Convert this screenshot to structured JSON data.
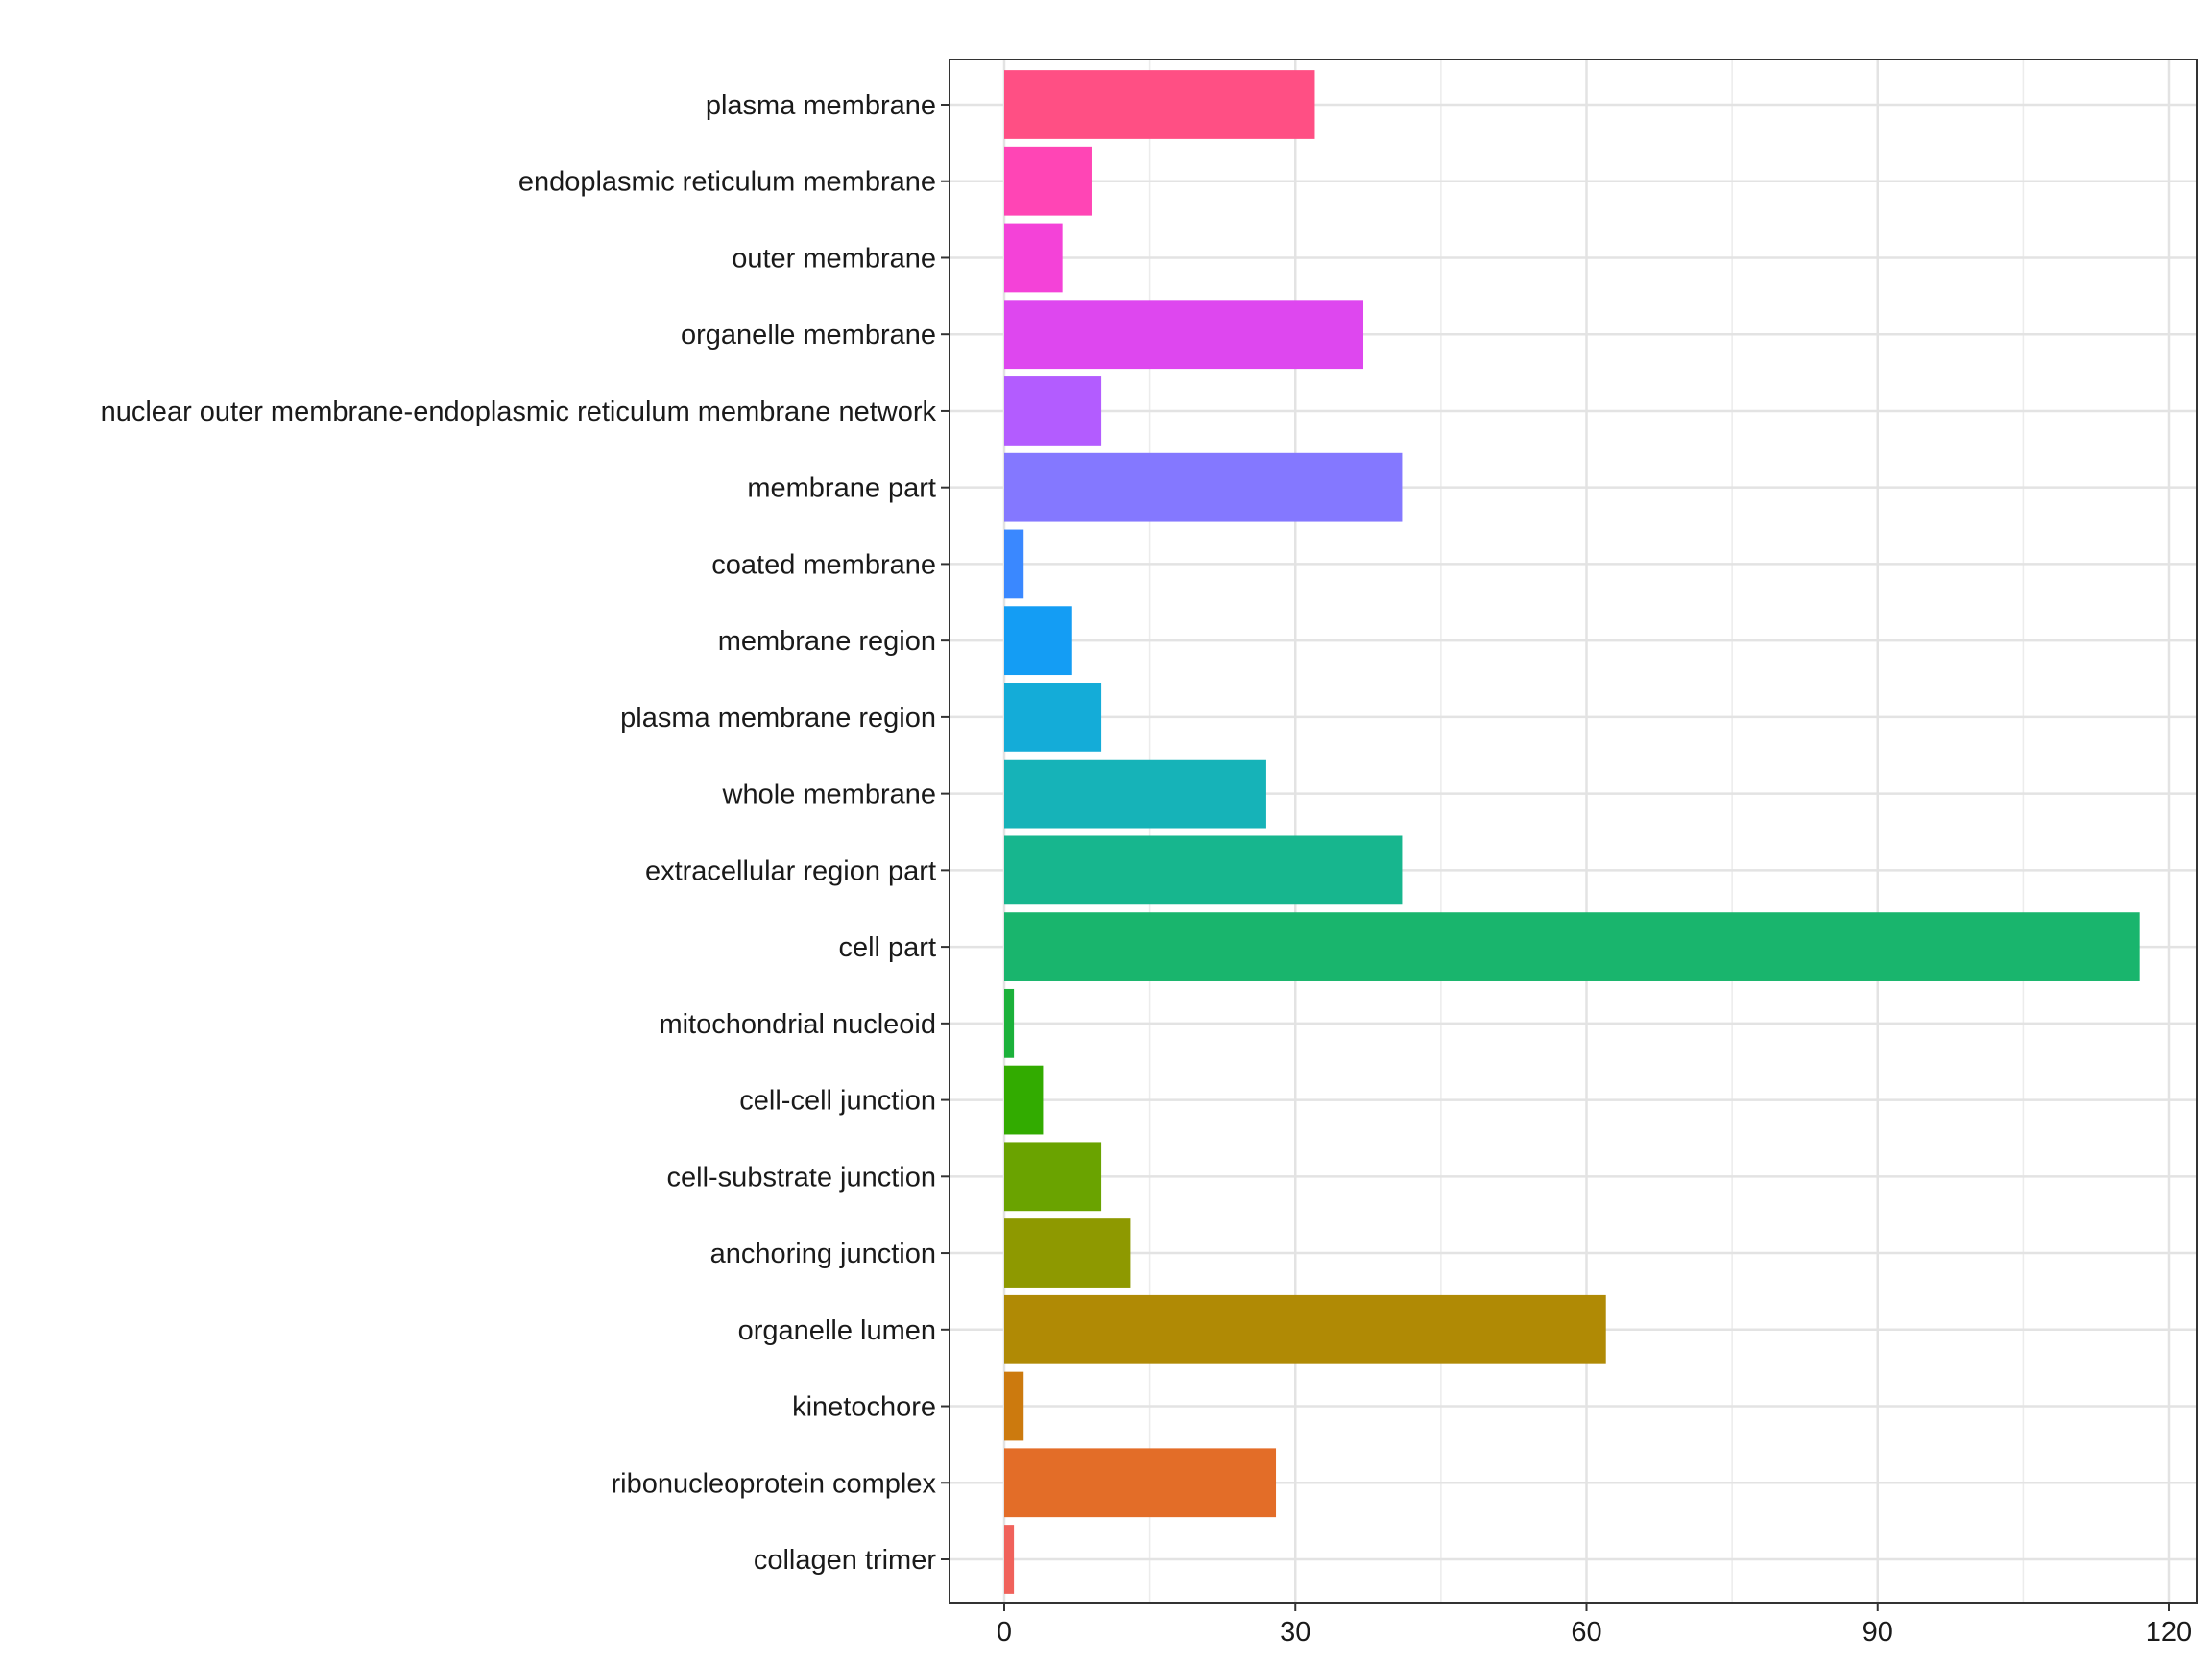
{
  "chart_data": {
    "type": "bar",
    "orientation": "horizontal",
    "title": "",
    "xlabel": "",
    "ylabel": "",
    "xlim": [
      0,
      120
    ],
    "xticks": [
      0,
      30,
      60,
      90,
      120
    ],
    "grid": true,
    "legend": "none",
    "categories": [
      "plasma membrane",
      "endoplasmic reticulum membrane",
      "outer membrane",
      "organelle membrane",
      "nuclear outer membrane-endoplasmic reticulum membrane network",
      "membrane part",
      "coated membrane",
      "membrane region",
      "plasma membrane region",
      "whole membrane",
      "extracellular region part",
      "cell part",
      "mitochondrial nucleoid",
      "cell-cell junction",
      "cell-substrate junction",
      "anchoring junction",
      "organelle lumen",
      "kinetochore",
      "ribonucleoprotein complex",
      "collagen trimer"
    ],
    "values": [
      32,
      9,
      6,
      37,
      10,
      41,
      2,
      7,
      10,
      27,
      41,
      117,
      1,
      4,
      10,
      13,
      62,
      2,
      28,
      1
    ],
    "colors": [
      "#FF4F84",
      "#FF45B5",
      "#F442D8",
      "#DE47EF",
      "#B35CFF",
      "#8478FF",
      "#3A88FF",
      "#149DF4",
      "#14ACD8",
      "#16B3B8",
      "#17B68E",
      "#19B56D",
      "#1BB13A",
      "#32AB00",
      "#6AA300",
      "#8E9900",
      "#B08A05",
      "#CC7A0E",
      "#E36D28",
      "#F0625B"
    ]
  }
}
